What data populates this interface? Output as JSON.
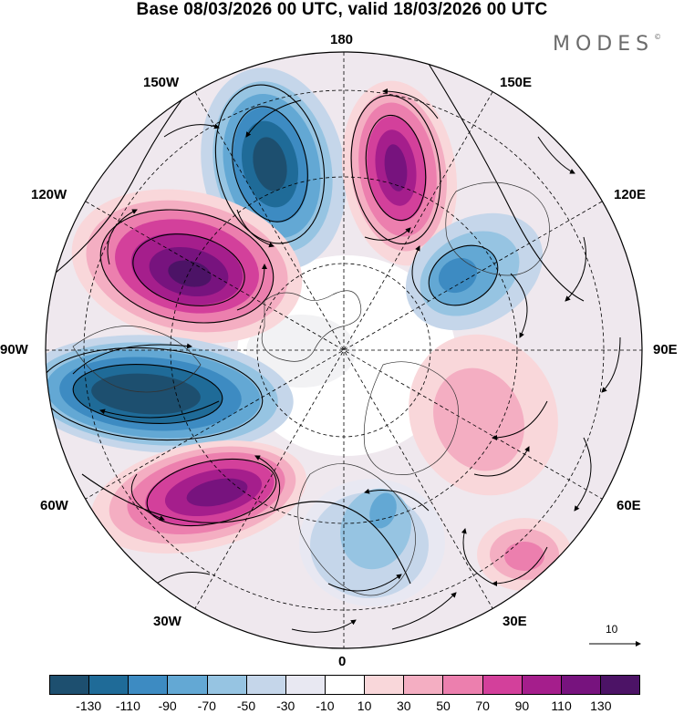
{
  "title": "Base 08/03/2026 00 UTC, valid 18/03/2026 00 UTC",
  "logo": {
    "text": "MODES",
    "mark": "©"
  },
  "longitude_labels": {
    "top": "180",
    "bottom": "0",
    "left": "90W",
    "right": "90E",
    "upper_left_outer": "120W",
    "upper_left_inner": "150W",
    "upper_right_inner": "150E",
    "upper_right_outer": "120E",
    "lower_left_outer": "60W",
    "lower_left_inner": "30W",
    "lower_right_inner": "30E",
    "lower_right_outer": "60E"
  },
  "reference_vector": {
    "label": "10"
  },
  "colorbar": {
    "colors": [
      "#1d4f6f",
      "#1f6b98",
      "#3d8bc2",
      "#63a8d4",
      "#96c4e2",
      "#c5d6ea",
      "#e8e8f2",
      "#ffffff",
      "#f9d7da",
      "#f4aec2",
      "#ec7fae",
      "#d3409b",
      "#a51e8c",
      "#77137e",
      "#4c1366"
    ],
    "ticks": [
      "-130",
      "-110",
      "-90",
      "-70",
      "-50",
      "-30",
      "-10",
      "10",
      "30",
      "50",
      "70",
      "90",
      "110",
      "130"
    ]
  },
  "anomaly_centers": [
    {
      "sign": "negative",
      "location": "Pacific near 165W",
      "peak": -130
    },
    {
      "sign": "positive",
      "location": "Pacific near 160E",
      "peak": 110
    },
    {
      "sign": "positive",
      "location": "western Canada",
      "peak": 130
    },
    {
      "sign": "negative",
      "location": "eastern Canada / Hudson Bay",
      "peak": -130
    },
    {
      "sign": "positive",
      "location": "North Atlantic",
      "peak": 130
    },
    {
      "sign": "negative",
      "location": "northern Europe",
      "peak": -90
    },
    {
      "sign": "negative",
      "location": "eastern Siberia",
      "peak": -110
    },
    {
      "sign": "positive",
      "location": "central Asia",
      "peak": 70
    }
  ]
}
